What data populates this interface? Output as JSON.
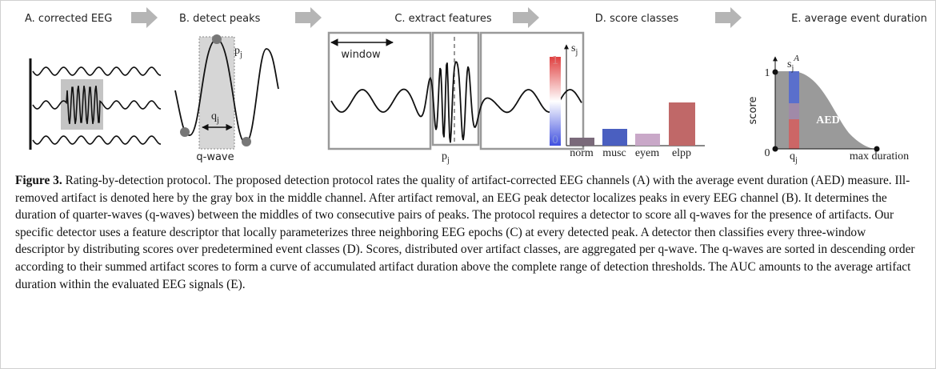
{
  "panels": [
    {
      "title": "A. corrected EEG"
    },
    {
      "title": "B. detect peaks",
      "peak_label": {
        "base": "p",
        "sub": "j"
      },
      "interval_label": {
        "base": "q",
        "sub": "j"
      },
      "wave_label": "q-wave"
    },
    {
      "title": "C. extract features",
      "window_label": "window",
      "peak_label": {
        "base": "p",
        "sub": "j"
      }
    },
    {
      "title": "D. score classes",
      "score_label": {
        "base": "s",
        "sub": "j"
      },
      "colorbar_ticks": [
        1,
        0
      ],
      "classes": [
        "norm",
        "musc",
        "eyem",
        "elpp"
      ]
    },
    {
      "title": "E. average event duration",
      "score_label": {
        "base": "s",
        "sub": "j",
        "sup": "A"
      },
      "y_axis_label": "score",
      "y_ticks": [
        1,
        0
      ],
      "x_label": {
        "base": "q",
        "sub": "j"
      },
      "x_end_label": "max duration",
      "area_label": "AED"
    }
  ],
  "caption": {
    "label": "Figure 3.",
    "text": "Rating-by-detection protocol. The proposed detection protocol rates the quality of artifact-corrected EEG channels (A) with the average event duration (AED) measure. Ill-removed artifact is denoted here by the gray box in the middle channel. After artifact removal, an EEG peak detector localizes peaks in every EEG channel (B). It determines the duration of quarter-waves (q-waves) between the middles of two consecutive pairs of peaks. The protocol requires a detector to score all q-waves for the presence of artifacts. Our specific detector uses a feature descriptor that locally parameterizes three neighboring EEG epochs (C) at every detected peak. A detector then classifies every three-window descriptor by distributing scores over predetermined event classes (D). Scores, distributed over artifact classes, are aggregated per q-wave. The q-waves are sorted in descending order according to their summed artifact scores to form a curve of accumulated artifact duration above the complete range of detection thresholds. The AUC amounts to the average artifact duration within the evaluated EEG signals (E)."
  }
}
